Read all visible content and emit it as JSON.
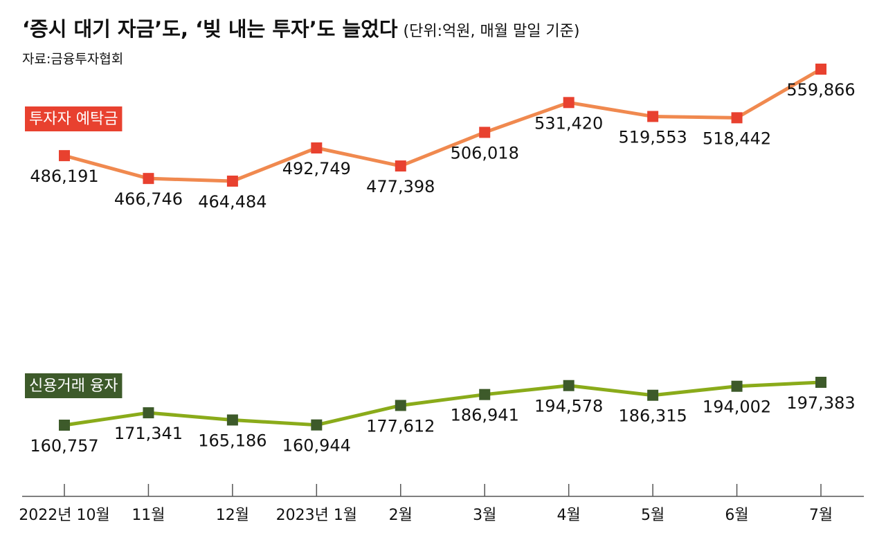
{
  "chart_data": {
    "type": "line",
    "title": "‘증시 대기 자금’도, ‘빚 내는 투자’도 늘었다",
    "subtitle": "(단위:억원, 매월 말일 기준)",
    "source": "자료:금융투자협회",
    "categories": [
      "2022년 10월",
      "11월",
      "12월",
      "2023년 1월",
      "2월",
      "3월",
      "4월",
      "5월",
      "6월",
      "7월"
    ],
    "series": [
      {
        "name": "투자자 예탁금",
        "color": "#f0894f",
        "marker_color": "#e8412f",
        "values": [
          486191,
          466746,
          464484,
          492749,
          477398,
          506018,
          531420,
          519553,
          518442,
          559866
        ],
        "value_labels": [
          "486,191",
          "466,746",
          "464,484",
          "492,749",
          "477,398",
          "506,018",
          "531,420",
          "519,553",
          "518,442",
          "559,866"
        ]
      },
      {
        "name": "신용거래 융자",
        "color": "#8aab1a",
        "marker_color": "#3d5a2a",
        "values": [
          160757,
          171341,
          165186,
          160944,
          177612,
          186941,
          194578,
          186315,
          194002,
          197383
        ],
        "value_labels": [
          "160,757",
          "171,341",
          "165,186",
          "160,944",
          "177,612",
          "186,941",
          "194,578",
          "186,315",
          "194,002",
          "197,383"
        ]
      }
    ]
  }
}
